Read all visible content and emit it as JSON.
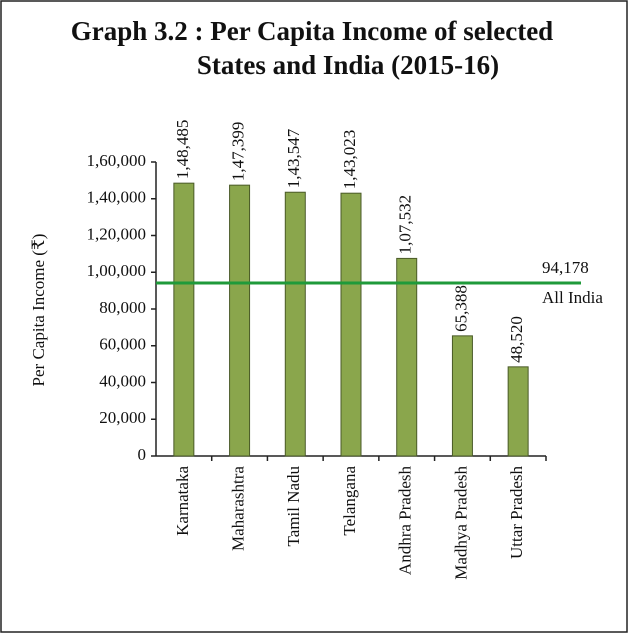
{
  "chart_data": {
    "type": "bar",
    "title": [
      "Graph 3.2 : Per Capita Income of selected",
      "States and India (2015-16)"
    ],
    "y_label": "Per Capita Income (₹)",
    "categories": [
      "Karnataka",
      "Maharashtra",
      "Tamil Nadu",
      "Telangana",
      "Andhra  Pradesh",
      "Madhya Pradesh",
      "Uttar Pradesh"
    ],
    "values": [
      148485,
      147399,
      143547,
      143023,
      107532,
      65388,
      48520
    ],
    "value_labels": [
      "1,48,485",
      "1,47,399",
      "1,43,547",
      "1,43,023",
      "1,07,532",
      "65,388",
      "48,520"
    ],
    "color": "#8aa64c",
    "ylim": [
      0,
      160000
    ],
    "yticks": [
      0,
      {
        "value": 20000,
        "label": "20,000"
      },
      {
        "value": 40000,
        "label": "40,000"
      },
      {
        "value": 60000,
        "label": "60,000"
      },
      {
        "value": 80000,
        "label": "80,000"
      },
      {
        "value": 100000,
        "label": "1,00,000"
      },
      {
        "value": 120000,
        "label": "1,20,000"
      },
      {
        "value": 140000,
        "label": "1,40,000"
      },
      {
        "value": 160000,
        "label": "1,60,000"
      }
    ],
    "reference_line": {
      "value": 94178,
      "label": "94,178",
      "name": "All India",
      "color": "#1f9a3a"
    }
  }
}
